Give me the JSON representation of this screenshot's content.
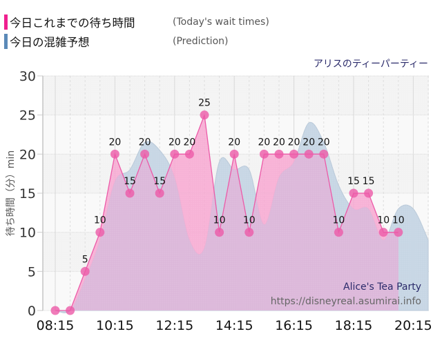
{
  "legend": [
    {
      "label": "今日これまでの待ち時間",
      "sublabel": "(Today's wait times)",
      "color": "#f0208f"
    },
    {
      "label": "今日の混雑予想",
      "sublabel": "(Prediction)",
      "color": "#5b8ab8"
    }
  ],
  "attraction_jp": "アリスのティーパーティー",
  "watermark": {
    "name": "Alice's Tea Party",
    "url": "https://disneyreal.asumirai.info"
  },
  "colors": {
    "actual_fill": "#f7a6d0",
    "actual_line": "#ec5aa8",
    "actual_point": "#ec5aa8",
    "prediction_fill": "#c7d6e4",
    "overlap_fill": "#dcb8da",
    "plot_bg": "#f3f3f3"
  },
  "chart_data": {
    "type": "area",
    "title": "アリスのティーパーティー",
    "xlabel": "",
    "ylabel": "待ち時間（分）min",
    "ylim": [
      0,
      30
    ],
    "yticks": [
      0,
      5,
      10,
      15,
      20,
      25,
      30
    ],
    "xticks": [
      "08:15",
      "10:15",
      "12:15",
      "14:15",
      "16:15",
      "18:15",
      "20:15"
    ],
    "grid": true,
    "legend_position": "top-left",
    "x": [
      "08:15",
      "08:45",
      "09:15",
      "09:45",
      "10:15",
      "10:45",
      "11:15",
      "11:45",
      "12:15",
      "12:45",
      "13:15",
      "13:45",
      "14:15",
      "14:45",
      "15:15",
      "15:45",
      "16:15",
      "16:45",
      "17:15",
      "17:45",
      "18:15",
      "18:45",
      "19:15",
      "19:45",
      "20:15",
      "20:45"
    ],
    "series": [
      {
        "name": "今日これまでの待ち時間 (Today's wait times)",
        "type": "line+area",
        "values": [
          0,
          0,
          5,
          10,
          20,
          15,
          20,
          15,
          20,
          20,
          25,
          10,
          20,
          10,
          20,
          20,
          20,
          20,
          20,
          10,
          15,
          15,
          10,
          10,
          null,
          null
        ]
      },
      {
        "name": "今日の混雑予想 (Prediction)",
        "type": "area",
        "values": [
          0,
          0,
          4,
          9,
          16.5,
          18,
          21.5,
          20.5,
          17,
          9,
          8,
          19,
          18,
          18,
          11,
          17,
          19,
          24,
          21.5,
          16,
          13,
          13,
          9,
          13,
          13,
          9
        ]
      }
    ]
  },
  "axis": {
    "ylabel": "待ち時間（分）min"
  }
}
